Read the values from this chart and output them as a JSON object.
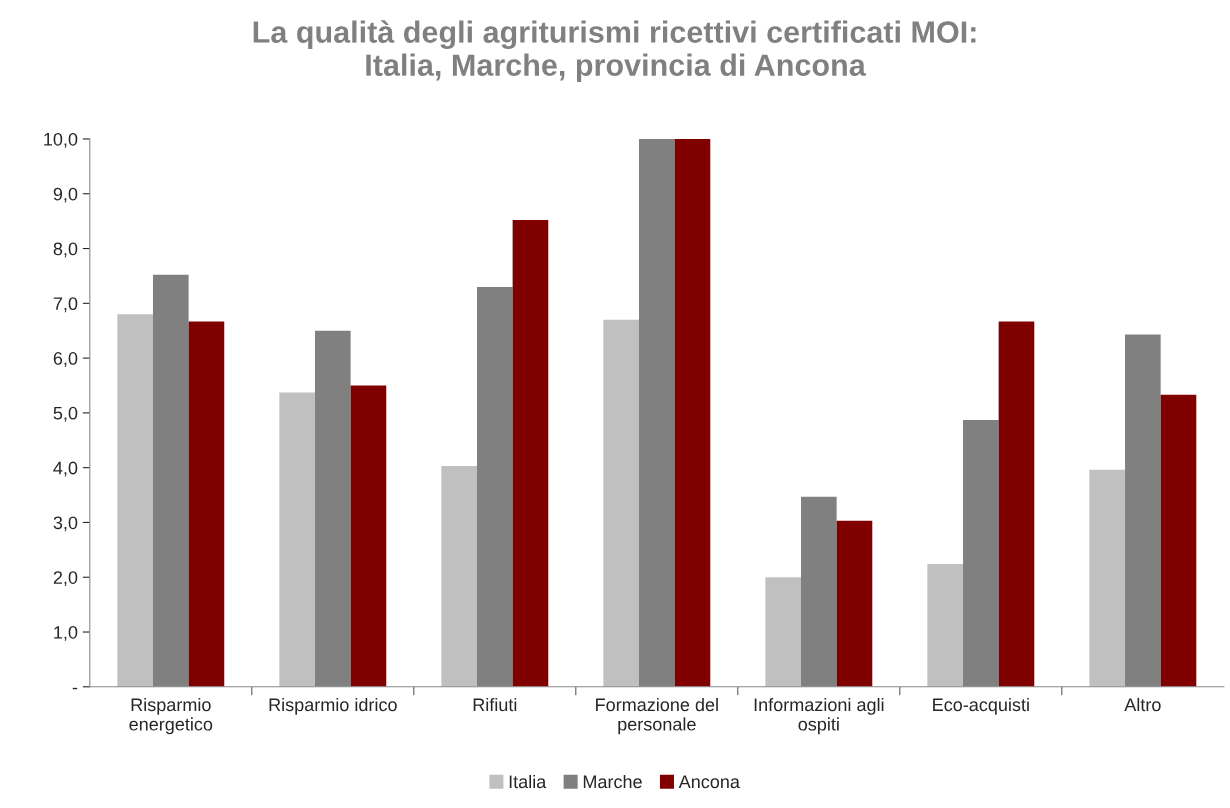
{
  "chart_data": {
    "type": "bar",
    "title": "La qualità degli agriturismi ricettivi certificati MOI:\nItalia, Marche, provincia di Ancona",
    "categories": [
      "Risparmio\nenergetico",
      "Risparmio idrico",
      "Rifiuti",
      "Formazione del\npersonale",
      "Informazioni agli\nospiti",
      "Eco-acquisti",
      "Altro"
    ],
    "series": [
      {
        "name": "Italia",
        "color": "#c0c0c0",
        "values": [
          6.8,
          5.37,
          4.03,
          6.7,
          2.0,
          2.24,
          3.96
        ]
      },
      {
        "name": "Marche",
        "color": "#808080",
        "values": [
          7.52,
          6.5,
          7.3,
          10.0,
          3.47,
          4.87,
          6.43
        ]
      },
      {
        "name": "Ancona",
        "color": "#800000",
        "values": [
          6.67,
          5.5,
          8.52,
          10.0,
          3.03,
          6.67,
          5.33
        ]
      }
    ],
    "ylim": [
      0,
      10
    ],
    "yticks": [
      {
        "value": 0,
        "label": "-"
      },
      {
        "value": 1,
        "label": "1,0"
      },
      {
        "value": 2,
        "label": "2,0"
      },
      {
        "value": 3,
        "label": "3,0"
      },
      {
        "value": 4,
        "label": "4,0"
      },
      {
        "value": 5,
        "label": "5,0"
      },
      {
        "value": 6,
        "label": "6,0"
      },
      {
        "value": 7,
        "label": "7,0"
      },
      {
        "value": 8,
        "label": "8,0"
      },
      {
        "value": 9,
        "label": "9,0"
      },
      {
        "value": 10,
        "label": "10,0"
      }
    ],
    "grid": false,
    "legend": "bottom"
  }
}
